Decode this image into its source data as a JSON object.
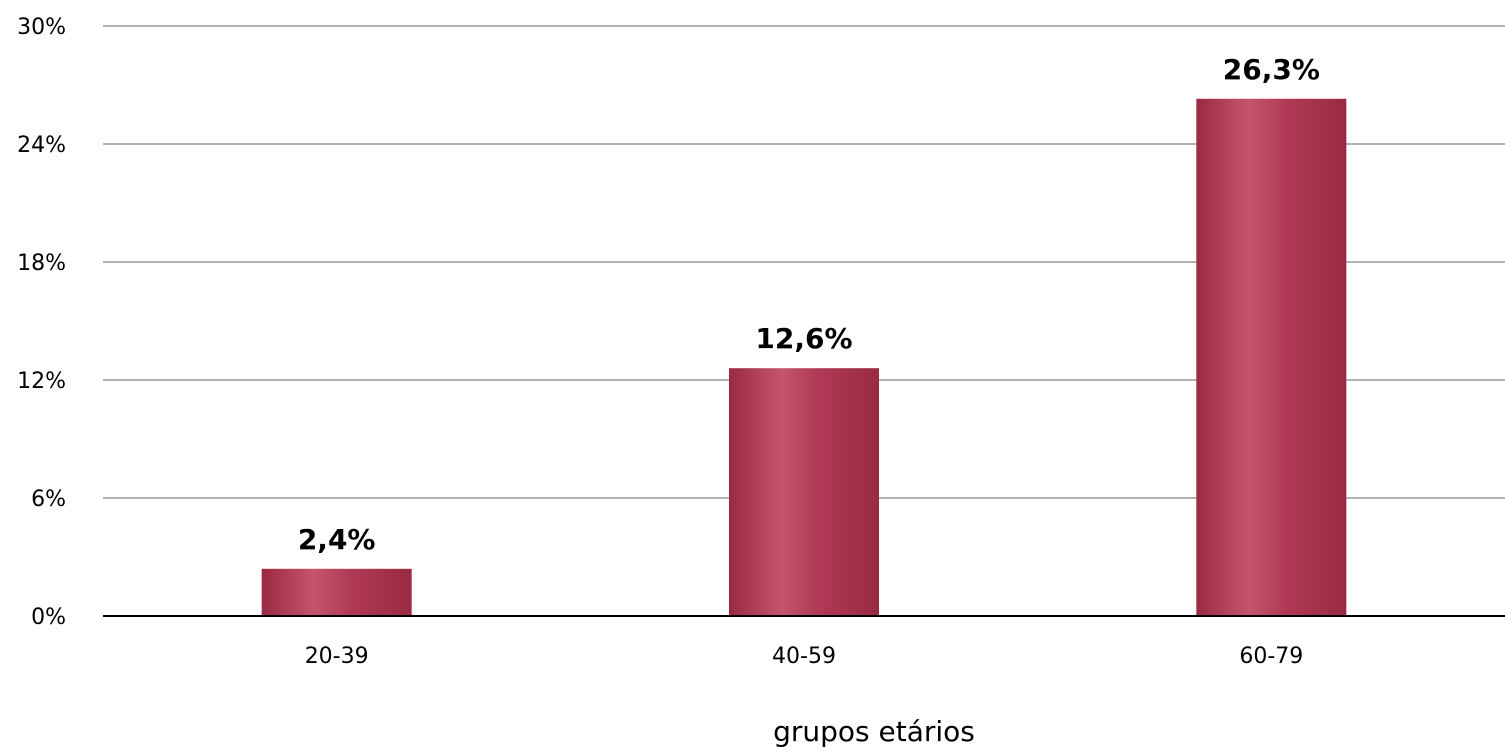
{
  "chart_data": {
    "type": "bar",
    "categories": [
      "20-39",
      "40-59",
      "60-79"
    ],
    "values": [
      2.4,
      12.6,
      26.3
    ],
    "data_labels": [
      "2,4%",
      "12,6%",
      "26,3%"
    ],
    "title": "",
    "xlabel": "grupos etários",
    "ylabel": "",
    "ylim": [
      0,
      30
    ],
    "y_ticks": [
      0,
      6,
      12,
      18,
      24,
      30
    ],
    "y_tick_labels": [
      "0%",
      "6%",
      "12%",
      "18%",
      "24%",
      "30%"
    ],
    "grid": true,
    "legend": "none",
    "colors": {
      "bar": "#b03a55",
      "bar_dark": "#9a2a42",
      "bar_light": "#c4556c",
      "grid": "#b3b3b3",
      "axis": "#000000"
    }
  }
}
